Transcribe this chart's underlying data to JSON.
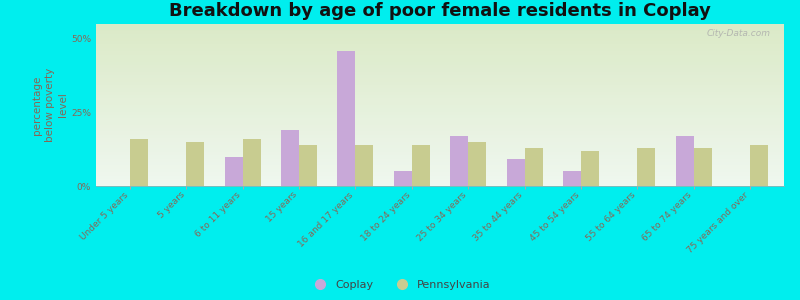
{
  "title": "Breakdown by age of poor female residents in Coplay",
  "ylabel": "percentage\nbelow poverty\nlevel",
  "background_color": "#00EEEE",
  "plot_bg_gradient_top": "#d8e8c0",
  "plot_bg_gradient_bottom": "#f0f8f0",
  "categories": [
    "Under 5 years",
    "5 years",
    "6 to 11 years",
    "15 years",
    "16 and 17 years",
    "18 to 24 years",
    "25 to 34 years",
    "35 to 44 years",
    "45 to 54 years",
    "55 to 64 years",
    "65 to 74 years",
    "75 years and over"
  ],
  "coplay_values": [
    0,
    0,
    10,
    19,
    46,
    5,
    17,
    9,
    5,
    0,
    17,
    0
  ],
  "pennsylvania_values": [
    16,
    15,
    16,
    14,
    14,
    14,
    15,
    13,
    12,
    13,
    13,
    14
  ],
  "coplay_color": "#c8a8d8",
  "pennsylvania_color": "#c8cc90",
  "ylim": [
    0,
    55
  ],
  "yticks": [
    0,
    25,
    50
  ],
  "ytick_labels": [
    "0%",
    "25%",
    "50%"
  ],
  "bar_width": 0.32,
  "title_fontsize": 13,
  "axis_label_fontsize": 7.5,
  "tick_fontsize": 6.5,
  "legend_labels": [
    "Coplay",
    "Pennsylvania"
  ],
  "watermark": "City-Data.com",
  "label_color": "#886655",
  "tick_label_color": "#886655"
}
